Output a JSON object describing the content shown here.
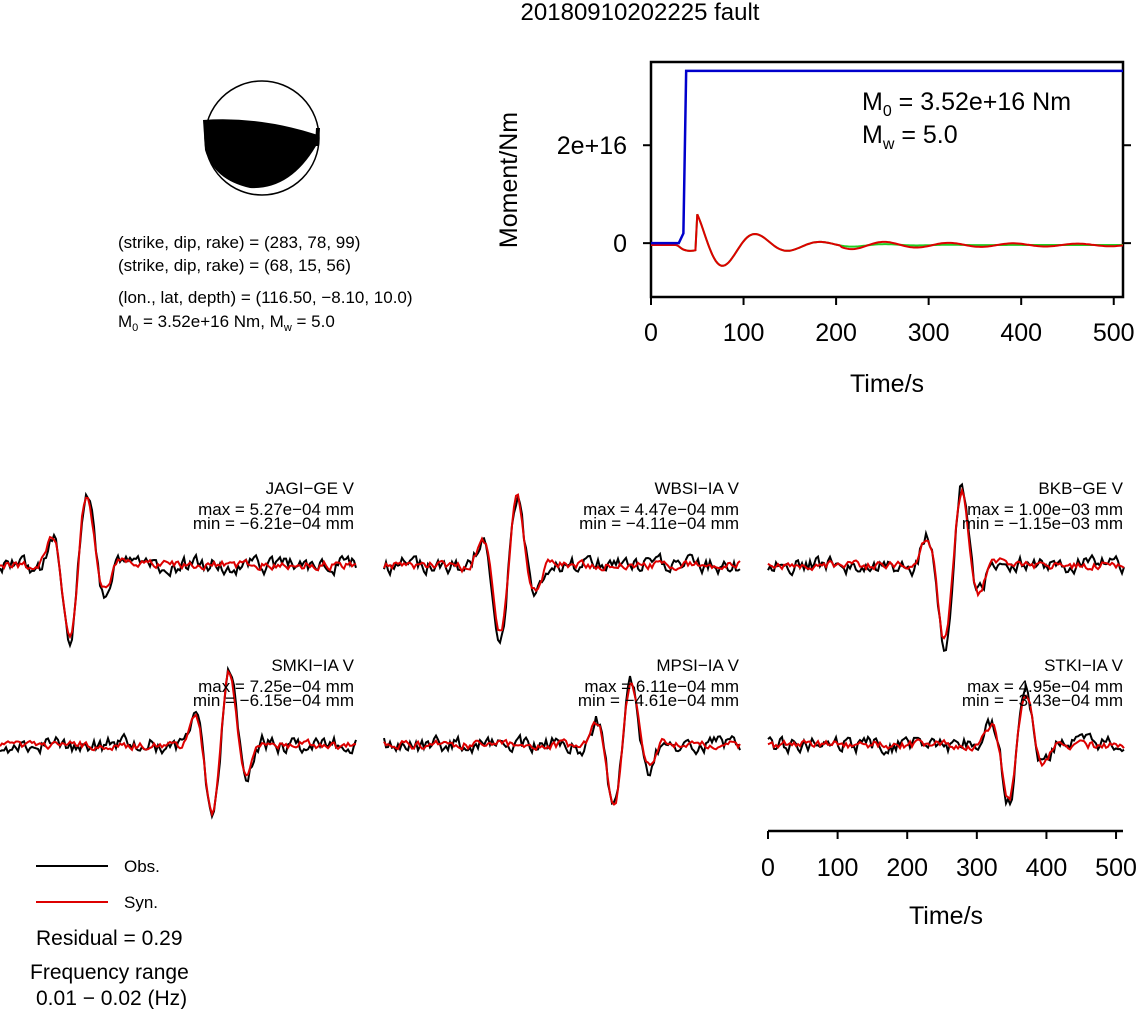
{
  "title": "20180910202225 fault",
  "mechanism": {
    "plane1": "(strike, dip, rake) = (283, 78, 99)",
    "plane2": "(strike, dip, rake) = (68, 15, 56)",
    "location": "(lon., lat, depth) = (116.50, −8.10, 10.0)",
    "moment_prefix": "M",
    "moment_sub": "0",
    "moment_mid": " = 3.52e+16 Nm, M",
    "moment_sub2": "w",
    "moment_end": " = 5.0"
  },
  "moment_panel": {
    "m0_label": "M",
    "m0_sub": "0",
    "m0_value": " = 3.52e+16 Nm",
    "mw_label": "M",
    "mw_sub": "w",
    "mw_value": " = 5.0",
    "colors": {
      "moment": "#0000cc",
      "stf_red": "#dd0000",
      "stf_green": "#22cc22"
    }
  },
  "legend": {
    "obs": "Obs.",
    "syn": "Syn.",
    "residual": "Residual = 0.29",
    "freq_title": "Frequency range",
    "freq_value": "0.01 − 0.02 (Hz)",
    "colors": {
      "obs": "#000000",
      "syn": "#dd0000"
    }
  },
  "chart_data": [
    {
      "type": "line",
      "xlabel": "Time/s",
      "ylabel": "Moment/Nm",
      "xlim": [
        0,
        510
      ],
      "ylim": [
        -1.1e+16,
        3.7e+16
      ],
      "xticks": [
        0,
        100,
        200,
        300,
        400,
        500
      ],
      "yticks": [
        0,
        2e+16
      ],
      "ytick_labels": [
        "0",
        "2e+16"
      ],
      "series": [
        {
          "x": [
            0,
            30,
            35,
            38,
            510
          ],
          "y": [
            0,
            0,
            2000000000000000.0,
            3.52e+16,
            3.52e+16
          ]
        }
      ]
    },
    {
      "type": "line",
      "xlabel": "Time/s",
      "xlim": [
        0,
        510
      ],
      "xticks": [
        0,
        100,
        200,
        300,
        400,
        500
      ],
      "stations": [
        {
          "name": "JAGI−GE V",
          "max": "max = 5.27e−04 mm",
          "min": "min = −6.21e−04 mm"
        },
        {
          "name": "WBSI−IA V",
          "max": "max = 4.47e−04 mm",
          "min": "min = −4.11e−04 mm"
        },
        {
          "name": "BKB−GE V",
          "max": "max = 1.00e−03 mm",
          "min": "min = −1.15e−03 mm"
        },
        {
          "name": "SMKI−IA V",
          "max": "max = 7.25e−04 mm",
          "min": "min = −6.15e−04 mm"
        },
        {
          "name": "MPSI−IA V",
          "max": "max = 6.11e−04 mm",
          "min": "min = −4.61e−04 mm"
        },
        {
          "name": "STKI−IA V",
          "max": "max = 4.95e−04 mm",
          "min": "min = −3.43e−04 mm"
        }
      ]
    }
  ]
}
